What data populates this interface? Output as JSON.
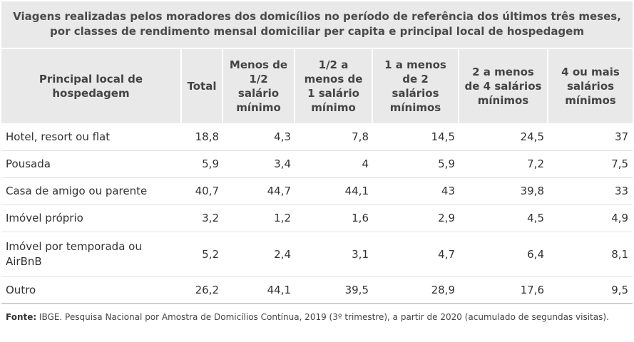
{
  "title": "Viagens realizadas pelos moradores dos domicílios no período de referência dos últimos três meses, por classes de rendimento mensal domiciliar per capita e principal local de hospedagem",
  "columns": [
    "Principal local de hospedagem",
    "Total",
    "Menos de 1/2 salário mínimo",
    "1/2 a menos de 1 salário mínimo",
    "1 a menos de 2 salários mínimos",
    "2 a menos de 4 salários mínimos",
    "4 ou mais salários mínimos"
  ],
  "rows": [
    {
      "label": "Hotel, resort ou flat",
      "values": [
        "18,8",
        "4,3",
        "7,8",
        "14,5",
        "24,5",
        "37"
      ]
    },
    {
      "label": "Pousada",
      "values": [
        "5,9",
        "3,4",
        "4",
        "5,9",
        "7,2",
        "7,5"
      ]
    },
    {
      "label": "Casa de amigo ou parente",
      "values": [
        "40,7",
        "44,7",
        "44,1",
        "43",
        "39,8",
        "33"
      ]
    },
    {
      "label": "Imóvel próprio",
      "values": [
        "3,2",
        "1,2",
        "1,6",
        "2,9",
        "4,5",
        "4,9"
      ]
    },
    {
      "label": "Imóvel por temporada ou AirBnB",
      "values": [
        "5,2",
        "2,4",
        "3,1",
        "4,7",
        "6,4",
        "8,1"
      ]
    },
    {
      "label": "Outro",
      "values": [
        "26,2",
        "44,1",
        "39,5",
        "28,9",
        "17,6",
        "9,5"
      ]
    }
  ],
  "source": {
    "label": "Fonte:",
    "text": " IBGE. Pesquisa Nacional por Amostra de Domicílios Contínua, 2019 (3º trimestre), a partir de 2020 (acumulado de segundas visitas)."
  }
}
